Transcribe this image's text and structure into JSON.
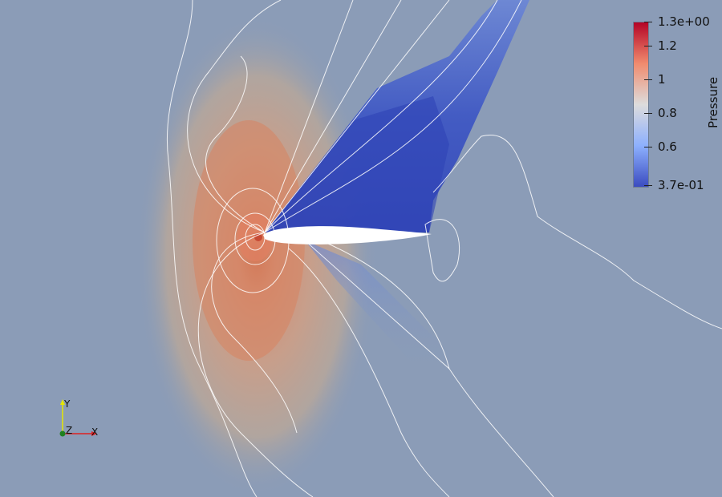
{
  "colorbar": {
    "title": "Pressure",
    "max_label": "1.3e+00",
    "min_label": "3.7e-01",
    "ticks": [
      "1.2",
      "1",
      "0.8",
      "0.6"
    ],
    "colors": [
      "#b40426",
      "#f08b6e",
      "#dddcdc",
      "#8db0fe",
      "#3b4cc0"
    ]
  },
  "axes": {
    "x_label": "X",
    "y_label": "Y",
    "z_label": "Z",
    "x_color": "#e02020",
    "y_color": "#e6e600",
    "z_color": "#208020"
  }
}
